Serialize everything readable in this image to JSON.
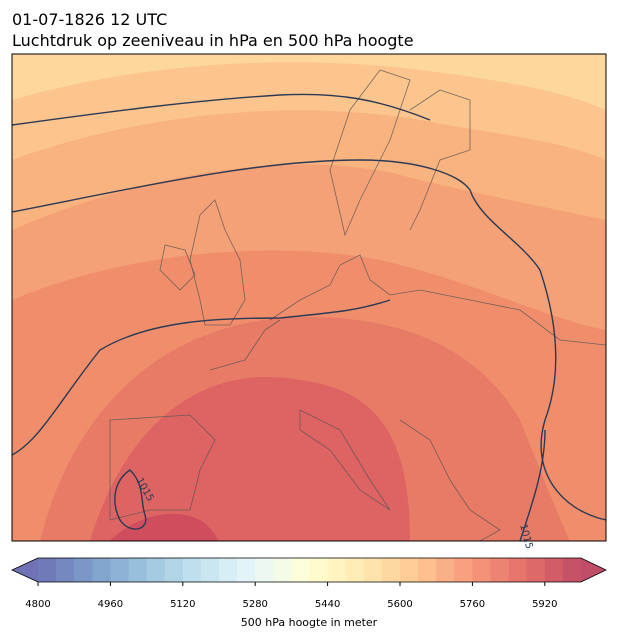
{
  "header": {
    "date": "01-07-1826 12 UTC",
    "title": "Luchtdruk op zeeniveau in hPa en 500 hPa hoogte"
  },
  "map": {
    "contour_labels": [
      "1015",
      "1015"
    ]
  },
  "colorbar": {
    "label": "500 hPa hoogte in meter",
    "lim": [
      4800,
      6000
    ],
    "ticks": [
      4800,
      4960,
      5120,
      5280,
      5440,
      5600,
      5760,
      5920
    ],
    "colors": [
      "#313695",
      "#4575b4",
      "#74add1",
      "#abd9e9",
      "#e0f3f8",
      "#ffffbf",
      "#fee090",
      "#fdae61",
      "#f46d43",
      "#d73027",
      "#a50026"
    ]
  }
}
